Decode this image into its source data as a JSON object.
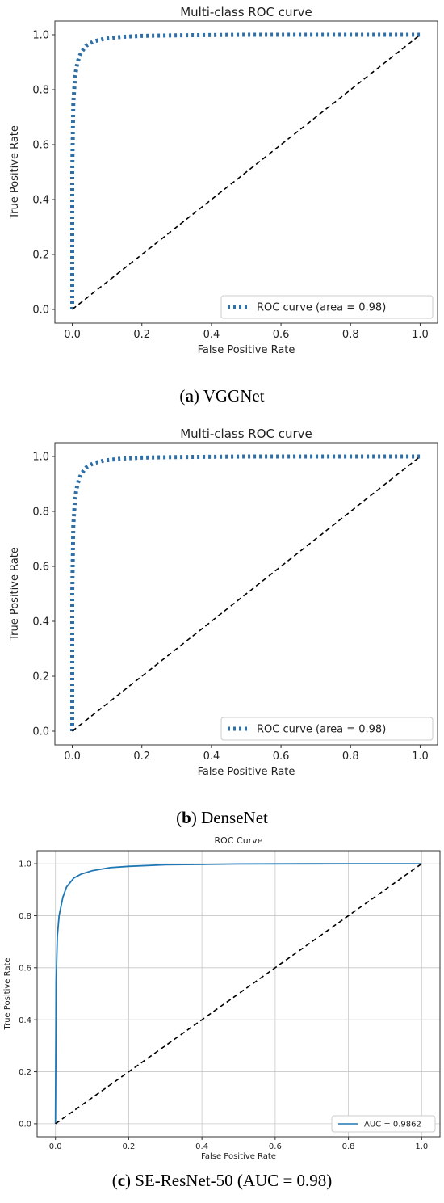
{
  "chart_data": [
    {
      "type": "line",
      "title": "Multi-class ROC curve",
      "xlabel": "False Positive Rate",
      "ylabel": "True Positive Rate",
      "xlim": [
        -0.05,
        1.05
      ],
      "ylim": [
        -0.05,
        1.05
      ],
      "xticks": [
        "0.0",
        "0.2",
        "0.4",
        "0.6",
        "0.8",
        "1.0"
      ],
      "yticks": [
        "0.0",
        "0.2",
        "0.4",
        "0.6",
        "0.8",
        "1.0"
      ],
      "grid": false,
      "legend_position": "lower-right",
      "series": [
        {
          "name": "ROC curve (area = 0.98)",
          "style": "dotted",
          "color": "#2f6fa8",
          "x": [
            0,
            0,
            0.003,
            0.008,
            0.015,
            0.025,
            0.04,
            0.06,
            0.09,
            0.14,
            0.2,
            0.3,
            0.5,
            0.8,
            1.0
          ],
          "y": [
            0,
            0.5,
            0.75,
            0.85,
            0.9,
            0.935,
            0.96,
            0.975,
            0.985,
            0.992,
            0.996,
            0.998,
            1.0,
            1.0,
            1.0
          ]
        },
        {
          "name": "",
          "style": "dashed",
          "color": "#000000",
          "x": [
            0,
            1
          ],
          "y": [
            0,
            1
          ]
        }
      ],
      "caption": {
        "label": "a",
        "text": "VGGNet"
      }
    },
    {
      "type": "line",
      "title": "Multi-class ROC curve",
      "xlabel": "False Positive Rate",
      "ylabel": "True Positive Rate",
      "xlim": [
        -0.05,
        1.05
      ],
      "ylim": [
        -0.05,
        1.05
      ],
      "xticks": [
        "0.0",
        "0.2",
        "0.4",
        "0.6",
        "0.8",
        "1.0"
      ],
      "yticks": [
        "0.0",
        "0.2",
        "0.4",
        "0.6",
        "0.8",
        "1.0"
      ],
      "grid": false,
      "legend_position": "lower-right",
      "series": [
        {
          "name": "ROC curve (area = 0.98)",
          "style": "dotted",
          "color": "#2f6fa8",
          "x": [
            0,
            0,
            0.003,
            0.008,
            0.015,
            0.025,
            0.04,
            0.06,
            0.09,
            0.14,
            0.2,
            0.3,
            0.5,
            0.8,
            1.0
          ],
          "y": [
            0,
            0.5,
            0.75,
            0.85,
            0.9,
            0.935,
            0.96,
            0.975,
            0.985,
            0.992,
            0.996,
            0.998,
            1.0,
            1.0,
            1.0
          ]
        },
        {
          "name": "",
          "style": "dashed",
          "color": "#000000",
          "x": [
            0,
            1
          ],
          "y": [
            0,
            1
          ]
        }
      ],
      "caption": {
        "label": "b",
        "text": "DenseNet"
      }
    },
    {
      "type": "line",
      "title": "ROC Curve",
      "xlabel": "False Positive Rate",
      "ylabel": "True Positive Rate",
      "xlim": [
        -0.05,
        1.05
      ],
      "ylim": [
        -0.05,
        1.05
      ],
      "xticks": [
        "0.0",
        "0.2",
        "0.4",
        "0.6",
        "0.8",
        "1.0"
      ],
      "yticks": [
        "0.0",
        "0.2",
        "0.4",
        "0.6",
        "0.8",
        "1.0"
      ],
      "grid": true,
      "legend_position": "lower-right",
      "series": [
        {
          "name": "AUC = 0.9862",
          "style": "solid",
          "color": "#1f77b4",
          "x": [
            0,
            0.002,
            0.005,
            0.01,
            0.02,
            0.03,
            0.05,
            0.07,
            0.1,
            0.15,
            0.2,
            0.3,
            0.5,
            0.8,
            1.0
          ],
          "y": [
            0,
            0.55,
            0.72,
            0.8,
            0.87,
            0.91,
            0.945,
            0.96,
            0.973,
            0.985,
            0.99,
            0.996,
            0.999,
            1.0,
            1.0
          ]
        },
        {
          "name": "",
          "style": "dashed",
          "color": "#000000",
          "x": [
            0,
            1
          ],
          "y": [
            0,
            1
          ]
        }
      ],
      "caption": {
        "label": "c",
        "text": "SE-ResNet-50 (AUC = 0.98)"
      }
    }
  ]
}
